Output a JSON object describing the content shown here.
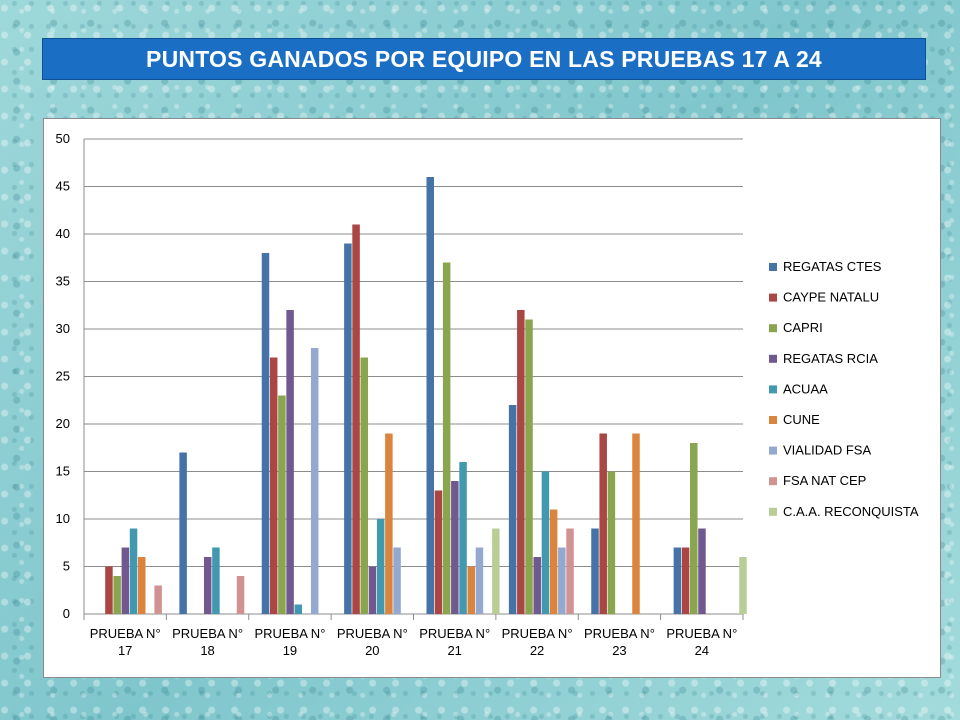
{
  "title": "PUNTOS GANADOS POR EQUIPO EN LAS PRUEBAS 17 A 24",
  "chart_data": {
    "type": "bar",
    "title": "",
    "xlabel": "",
    "ylabel": "",
    "ylim": [
      0,
      50
    ],
    "yticks": [
      0,
      5,
      10,
      15,
      20,
      25,
      30,
      35,
      40,
      45,
      50
    ],
    "grid": true,
    "legend_position": "right",
    "categories": [
      [
        "PRUEBA N°",
        "17"
      ],
      [
        "PRUEBA N°",
        "18"
      ],
      [
        "PRUEBA N°",
        "19"
      ],
      [
        "PRUEBA N°",
        "20"
      ],
      [
        "PRUEBA N°",
        "21"
      ],
      [
        "PRUEBA N°",
        "22"
      ],
      [
        "PRUEBA N°",
        "23"
      ],
      [
        "PRUEBA N°",
        "24"
      ]
    ],
    "series": [
      {
        "name": "REGATAS CTES",
        "color": "#4572a7",
        "values": [
          0,
          17,
          38,
          39,
          46,
          22,
          9,
          7
        ]
      },
      {
        "name": "CAYPE NATALU",
        "color": "#aa4643",
        "values": [
          5,
          0,
          27,
          41,
          13,
          32,
          19,
          7
        ]
      },
      {
        "name": "CAPRI",
        "color": "#89a54e",
        "values": [
          4,
          0,
          23,
          27,
          37,
          31,
          15,
          18
        ]
      },
      {
        "name": "REGATAS RCIA",
        "color": "#71588f",
        "values": [
          7,
          6,
          32,
          5,
          14,
          6,
          0,
          9
        ]
      },
      {
        "name": "ACUAA",
        "color": "#4198af",
        "values": [
          9,
          7,
          1,
          10,
          16,
          15,
          0,
          0
        ]
      },
      {
        "name": "CUNE",
        "color": "#db843d",
        "values": [
          6,
          0,
          0,
          19,
          5,
          11,
          19,
          0
        ]
      },
      {
        "name": "VIALIDAD FSA",
        "color": "#93a9cf",
        "values": [
          0,
          0,
          28,
          7,
          7,
          7,
          0,
          0
        ]
      },
      {
        "name": "FSA NAT CEP",
        "color": "#d19392",
        "values": [
          3,
          4,
          0,
          0,
          0,
          9,
          0,
          0
        ]
      },
      {
        "name": "C.A.A. RECONQUISTA",
        "color": "#b9cd96",
        "values": [
          0,
          0,
          0,
          0,
          9,
          0,
          0,
          6
        ]
      }
    ]
  }
}
